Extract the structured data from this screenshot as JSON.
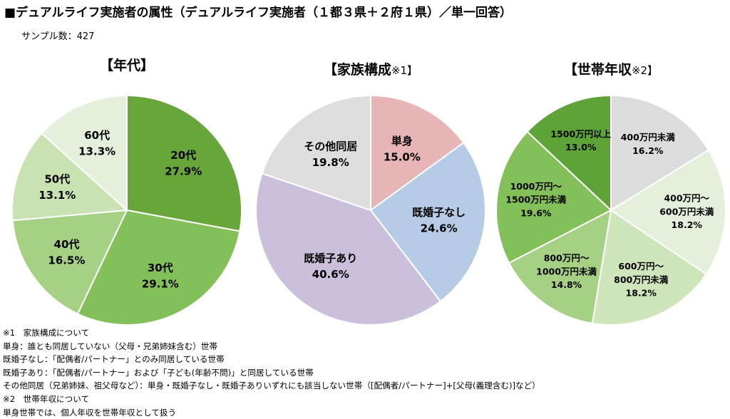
{
  "title": "■デュアルライフ実施者の属性（デュアルライフ実施者（１都３県＋２府１県）／単一回答）",
  "sample_label": "サンプル数：427",
  "chart_data": [
    {
      "type": "pie",
      "title": "【年代】",
      "title_note": "",
      "slices": [
        {
          "label": "20代",
          "value": 27.9,
          "display": "27.9%",
          "color": "#68a63c"
        },
        {
          "label": "30代",
          "value": 29.1,
          "display": "29.1%",
          "color": "#84c05a"
        },
        {
          "label": "40代",
          "value": 16.5,
          "display": "16.5%",
          "color": "#a6d185"
        },
        {
          "label": "50代",
          "value": 13.1,
          "display": "13.1%",
          "color": "#c8e2b2"
        },
        {
          "label": "60代",
          "value": 13.3,
          "display": "13.3%",
          "color": "#e5f0dc"
        }
      ]
    },
    {
      "type": "pie",
      "title": "【家族構成",
      "title_note": "※1】",
      "slices": [
        {
          "label": "単身",
          "value": 15.0,
          "display": "15.0%",
          "color": "#e8b5b6"
        },
        {
          "label": "既婚子なし",
          "value": 24.6,
          "display": "24.6%",
          "color": "#b6cce6"
        },
        {
          "label": "既婚子あり",
          "value": 40.6,
          "display": "40.6%",
          "color": "#cbc0dc"
        },
        {
          "label": "その他同居",
          "value": 19.8,
          "display": "19.8%",
          "color": "#dedede"
        }
      ]
    },
    {
      "type": "pie",
      "title": "【世帯年収",
      "title_note": "※2】",
      "slices": [
        {
          "label": "400万円未満",
          "value": 16.2,
          "display": "16.2%",
          "color": "#dcdcdc"
        },
        {
          "label": "400万円～\n600万円未満",
          "value": 18.2,
          "display": "18.2%",
          "color": "#e5f0dc"
        },
        {
          "label": "600万円～\n800万円未満",
          "value": 18.2,
          "display": "18.2%",
          "color": "#cfe5bc"
        },
        {
          "label": "800万円～\n1000万円未満",
          "value": 14.8,
          "display": "14.8%",
          "color": "#a6d185"
        },
        {
          "label": "1000万円～\n1500万円未満",
          "value": 19.6,
          "display": "19.6%",
          "color": "#84c05a"
        },
        {
          "label": "1500万円以上",
          "value": 13.0,
          "display": "13.0%",
          "color": "#5ea337"
        }
      ]
    }
  ],
  "notes": [
    "※1　家族構成について",
    "単身：誰とも同居していない（父母・兄弟姉妹含む）世帯",
    "既婚子なし：「配偶者/パートナー」とのみ同居している世帯",
    "既婚子あり：「配偶者/パートナー」および「子ども(年齢不問)」と同居している世帯",
    "その他同居（兄弟姉妹、祖父母など）：単身・既婚子なし・既婚子ありいずれにも該当しない世帯（[配偶者/パートナー]+[父母(義理含む)]など）",
    "※2　世帯年収について",
    "単身世帯では、個人年収を世帯年収として扱う"
  ]
}
